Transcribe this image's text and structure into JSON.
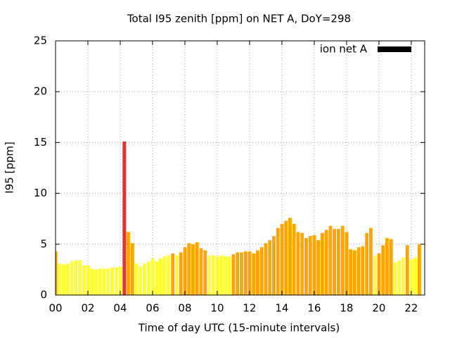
{
  "chart_data": {
    "type": "bar",
    "title": "Total I95 zenith [ppm] on NET A, DoY=298",
    "x_label": "Time of day UTC (15-minute intervals)",
    "y_label": "I95 [ppm]",
    "x": [
      0,
      0.25,
      0.5,
      0.75,
      1,
      1.25,
      1.5,
      1.75,
      2,
      2.25,
      2.5,
      2.75,
      3,
      3.25,
      3.5,
      3.75,
      4,
      4.25,
      4.5,
      4.75,
      5,
      5.25,
      5.5,
      5.75,
      6,
      6.25,
      6.5,
      6.75,
      7,
      7.25,
      7.5,
      7.75,
      8,
      8.25,
      8.5,
      8.75,
      9,
      9.25,
      9.5,
      9.75,
      10,
      10.25,
      10.5,
      10.75,
      11,
      11.25,
      11.5,
      11.75,
      12,
      12.25,
      12.5,
      12.75,
      13,
      13.25,
      13.5,
      13.75,
      14,
      14.25,
      14.5,
      14.75,
      15,
      15.25,
      15.5,
      15.75,
      16,
      16.25,
      16.5,
      16.75,
      17,
      17.25,
      17.5,
      17.75,
      18,
      18.25,
      18.5,
      18.75,
      19,
      19.25,
      19.5,
      19.75,
      20,
      20.25,
      20.5,
      20.75,
      21,
      21.25,
      21.5,
      21.75,
      22,
      22.25,
      22.5
    ],
    "series": [
      {
        "name": "ion net A",
        "color": "#000000",
        "values": [
          4.3,
          3.1,
          3.0,
          3.1,
          3.3,
          3.4,
          3.4,
          2.9,
          2.9,
          2.6,
          2.5,
          2.6,
          2.6,
          2.6,
          2.7,
          2.7,
          2.8,
          15.1,
          6.2,
          5.1,
          3.1,
          2.8,
          3.1,
          3.3,
          3.6,
          3.3,
          3.6,
          3.8,
          3.9,
          4.1,
          3.9,
          4.2,
          4.7,
          5.1,
          5.0,
          5.2,
          4.6,
          4.4,
          3.9,
          3.9,
          3.8,
          3.9,
          3.8,
          3.8,
          4.0,
          4.2,
          4.2,
          4.3,
          4.3,
          4.1,
          4.4,
          4.7,
          5.1,
          5.4,
          5.8,
          6.6,
          7.0,
          7.3,
          7.6,
          7.0,
          6.2,
          6.1,
          5.6,
          5.8,
          5.9,
          5.4,
          6.1,
          6.4,
          6.8,
          6.5,
          6.5,
          6.8,
          6.2,
          4.5,
          4.4,
          4.7,
          4.8,
          6.1,
          6.6,
          3.9,
          4.1,
          4.9,
          5.6,
          5.5,
          3.2,
          3.4,
          3.7,
          4.9,
          3.5,
          3.7,
          5.0
        ],
        "colors": [
          "#ffa500",
          "#ffff33",
          "#ffff33",
          "#ffff33",
          "#ffff33",
          "#ffff33",
          "#ffff33",
          "#ffff33",
          "#ffff33",
          "#ffff33",
          "#ffff33",
          "#ffff33",
          "#ffff33",
          "#ffff33",
          "#ffff33",
          "#ffff33",
          "#ffff33",
          "#e8312f",
          "#ffa500",
          "#ffa500",
          "#ffff33",
          "#ffff33",
          "#ffff33",
          "#ffff33",
          "#ffff33",
          "#ffff33",
          "#ffff33",
          "#ffff33",
          "#ffff33",
          "#ffa500",
          "#ffff33",
          "#ffa500",
          "#ffa500",
          "#ffa500",
          "#ffa500",
          "#ffa500",
          "#ffa500",
          "#ffa500",
          "#ffff33",
          "#ffff33",
          "#ffff33",
          "#ffff33",
          "#ffff33",
          "#ffff33",
          "#ffa500",
          "#ffa500",
          "#ffa500",
          "#ffa500",
          "#ffa500",
          "#ffa500",
          "#ffa500",
          "#ffa500",
          "#ffa500",
          "#ffa500",
          "#ffa500",
          "#ffa500",
          "#ffa500",
          "#ffa500",
          "#ffa500",
          "#ffa500",
          "#ffa500",
          "#ffa500",
          "#ffa500",
          "#ffa500",
          "#ffa500",
          "#ffa500",
          "#ffa500",
          "#ffa500",
          "#ffa500",
          "#ffa500",
          "#ffa500",
          "#ffa500",
          "#ffa500",
          "#ffa500",
          "#ffa500",
          "#ffa500",
          "#ffa500",
          "#ffa500",
          "#ffa500",
          "#ffff33",
          "#ffa500",
          "#ffa500",
          "#ffa500",
          "#ffa500",
          "#ffff33",
          "#ffff33",
          "#ffff33",
          "#ffa500",
          "#ffff33",
          "#ffff33",
          "#ffa500"
        ]
      }
    ],
    "xlim": [
      0,
      22.83
    ],
    "xticks": [
      {
        "value": 0,
        "label": "00"
      },
      {
        "value": 2,
        "label": "02"
      },
      {
        "value": 4,
        "label": "04"
      },
      {
        "value": 6,
        "label": "06"
      },
      {
        "value": 8,
        "label": "08"
      },
      {
        "value": 10,
        "label": "10"
      },
      {
        "value": 12,
        "label": "12"
      },
      {
        "value": 14,
        "label": "14"
      },
      {
        "value": 16,
        "label": "16"
      },
      {
        "value": 18,
        "label": "18"
      },
      {
        "value": 20,
        "label": "20"
      },
      {
        "value": 22,
        "label": "22"
      }
    ],
    "ylim": [
      0,
      25
    ],
    "yticks": [
      0,
      5,
      10,
      15,
      20,
      25
    ],
    "grid": true,
    "legend_position": "top-right"
  }
}
